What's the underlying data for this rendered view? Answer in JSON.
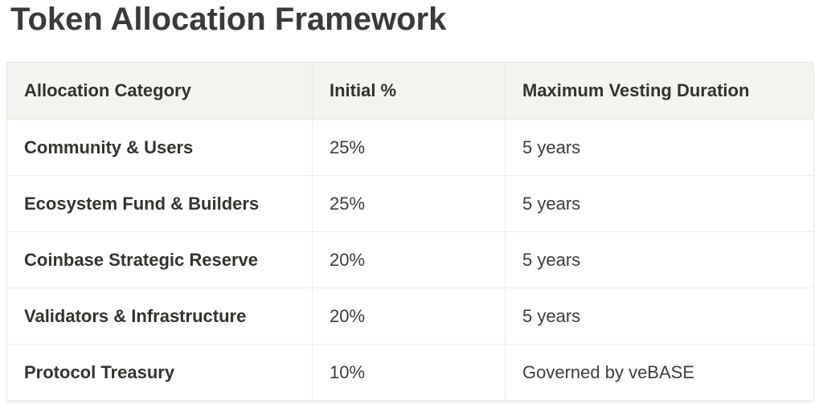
{
  "page": {
    "title": "Token Allocation Framework"
  },
  "colors": {
    "title_text": "#3a3a3a",
    "header_background": "#f5f3ef",
    "body_text": "#3c3c3c",
    "border": "#ececec"
  },
  "table": {
    "columns": {
      "category": "Allocation Category",
      "initial": "Initial %",
      "vesting": "Maximum Vesting Duration"
    },
    "rows": [
      {
        "category": "Community & Users",
        "initial": "25%",
        "vesting": "5 years"
      },
      {
        "category": "Ecosystem Fund & Builders",
        "initial": "25%",
        "vesting": "5 years"
      },
      {
        "category": "Coinbase Strategic Reserve",
        "initial": "20%",
        "vesting": "5 years"
      },
      {
        "category": "Validators & Infrastructure",
        "initial": "20%",
        "vesting": "5 years"
      },
      {
        "category": "Protocol Treasury",
        "initial": "10%",
        "vesting": "Governed by veBASE"
      }
    ]
  }
}
